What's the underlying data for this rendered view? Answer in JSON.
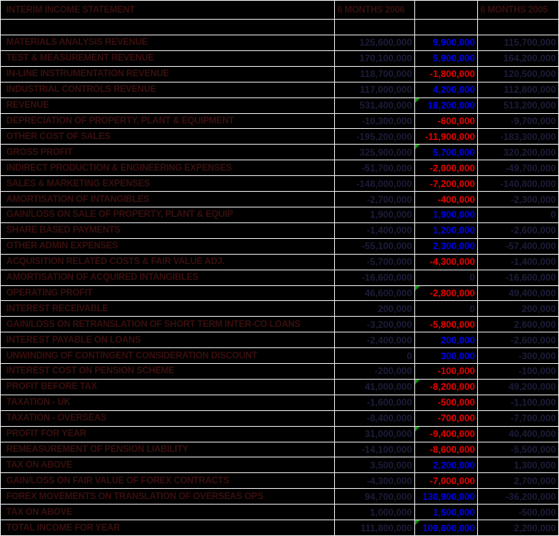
{
  "header": {
    "title": "INTERIM INCOME STATEMENT",
    "col_2006": "6 MONTHS 2006",
    "col_diff": "",
    "col_2005": "6 MONTHS 2005"
  },
  "colors": {
    "background": "#000000",
    "gridline": "#e6e6e6",
    "label_text": "#3a0e0e",
    "dark_number": "#1c1c3a",
    "positive_diff": "#0000e6",
    "negative_diff": "#e60000",
    "flag_triangle": "#009900"
  },
  "rows": [
    {
      "label": "MATERIALS ANALYSIS REVENUE",
      "y2006": "125,600,000",
      "diff": "9,900,000",
      "y2005": "115,700,000",
      "flag": false
    },
    {
      "label": "TEST & MEASUREMENT REVENUE",
      "y2006": "170,100,000",
      "diff": "5,900,000",
      "y2005": "164,200,000",
      "flag": false
    },
    {
      "label": "IN-LINE INSTRUMENTATION REVENUE",
      "y2006": "118,700,000",
      "diff": "-1,800,000",
      "y2005": "120,500,000",
      "flag": false
    },
    {
      "label": "INDUSTRIAL CONTROLS REVENUE",
      "y2006": "117,000,000",
      "diff": "4,200,000",
      "y2005": "112,800,000",
      "flag": false
    },
    {
      "label": "REVENUE",
      "y2006": "531,400,000",
      "diff": "18,200,000",
      "y2005": "513,200,000",
      "flag": true
    },
    {
      "label": "DEPRECIATION OF PROPERTY, PLANT & EQUIPMENT",
      "y2006": "-10,300,000",
      "diff": "-600,000",
      "y2005": "-9,700,000",
      "flag": false
    },
    {
      "label": "OTHER COST OF SALES",
      "y2006": "-195,200,000",
      "diff": "-11,900,000",
      "y2005": "-183,300,000",
      "flag": false
    },
    {
      "label": "GROSS PROFIT",
      "y2006": "325,900,000",
      "diff": "5,700,000",
      "y2005": "320,200,000",
      "flag": true
    },
    {
      "label": "INDIRECT PRODUCTION & ENGINEERING EXPENSES",
      "y2006": "-51,700,000",
      "diff": "-2,000,000",
      "y2005": "-49,700,000",
      "flag": false
    },
    {
      "label": "SALES & MARKETING EXPENSES",
      "y2006": "-148,000,000",
      "diff": "-7,200,000",
      "y2005": "-140,800,000",
      "flag": false
    },
    {
      "label": "AMORTISATION OF INTANGIBLES",
      "y2006": "-2,700,000",
      "diff": "-400,000",
      "y2005": "-2,300,000",
      "flag": false
    },
    {
      "label": "GAIN/LOSS ON SALE OF PROPERTY, PLANT & EQUIP",
      "y2006": "1,900,000",
      "diff": "1,900,000",
      "y2005": "0",
      "flag": false
    },
    {
      "label": "SHARE BASED PAYMENTS",
      "y2006": "-1,400,000",
      "diff": "1,200,000",
      "y2005": "-2,600,000",
      "flag": false
    },
    {
      "label": "OTHER ADMIN EXPENSES",
      "y2006": "-55,100,000",
      "diff": "2,300,000",
      "y2005": "-57,400,000",
      "flag": false
    },
    {
      "label": "ACQUISITION RELATED COSTS & FAIR VALUE ADJ.",
      "y2006": "-5,700,000",
      "diff": "-4,300,000",
      "y2005": "-1,400,000",
      "flag": false
    },
    {
      "label": "AMORTISATION OF ACQUIRED INTANGIBLES",
      "y2006": "-16,600,000",
      "diff": "0",
      "y2005": "-16,600,000",
      "flag": false
    },
    {
      "label": "OPERATING PROFIT",
      "y2006": "46,600,000",
      "diff": "-2,800,000",
      "y2005": "49,400,000",
      "flag": true
    },
    {
      "label": "INTEREST RECEIVABLE",
      "y2006": "200,000",
      "diff": "0",
      "y2005": "200,000",
      "flag": false
    },
    {
      "label": "GAIN/LOSS ON RETRANSLATION OF SHORT TERM INTER-CO LOANS",
      "y2006": "-3,200,000",
      "diff": "-5,800,000",
      "y2005": "2,600,000",
      "flag": false
    },
    {
      "label": "INTEREST PAYABLE ON LOANS",
      "y2006": "-2,400,000",
      "diff": "200,000",
      "y2005": "-2,600,000",
      "flag": false
    },
    {
      "label": "UNWINDING OF CONTINGENT CONSIDERATION DISCOUNT",
      "y2006": "0",
      "diff": "300,000",
      "y2005": "-300,000",
      "flag": false
    },
    {
      "label": "INTEREST COST ON PENSION SCHEME",
      "y2006": "-200,000",
      "diff": "-100,000",
      "y2005": "-100,000",
      "flag": false
    },
    {
      "label": "PROFIT BEFORE TAX",
      "y2006": "41,000,000",
      "diff": "-8,200,000",
      "y2005": "49,200,000",
      "flag": true
    },
    {
      "label": "TAXATION - UK",
      "y2006": "-1,600,000",
      "diff": "-500,000",
      "y2005": "-1,100,000",
      "flag": false
    },
    {
      "label": "TAXATION - OVERSEAS",
      "y2006": "-8,400,000",
      "diff": "-700,000",
      "y2005": "-7,700,000",
      "flag": false
    },
    {
      "label": "PROFIT FOR YEAR",
      "y2006": "31,000,000",
      "diff": "-9,400,000",
      "y2005": "40,400,000",
      "flag": true
    },
    {
      "label": "REMEASUREMENT OF PENSION LIABILITY",
      "y2006": "-14,100,000",
      "diff": "-8,600,000",
      "y2005": "-5,500,000",
      "flag": false
    },
    {
      "label": "TAX ON ABOVE",
      "y2006": "3,500,000",
      "diff": "2,200,000",
      "y2005": "1,300,000",
      "flag": false
    },
    {
      "label": "GAIN/LOSS ON FAIR VALUE OF FOREX CONTRACTS",
      "y2006": "-4,300,000",
      "diff": "-7,000,000",
      "y2005": "2,700,000",
      "flag": false
    },
    {
      "label": "FOREX MOVEMENTS ON TRANSLATION OF OVERSEAS OPS",
      "y2006": "94,700,000",
      "diff": "130,900,000",
      "y2005": "-36,200,000",
      "flag": false
    },
    {
      "label": "TAX ON ABOVE",
      "y2006": "1,000,000",
      "diff": "1,500,000",
      "y2005": "-500,000",
      "flag": false
    },
    {
      "label": "TOTAL INCOME FOR YEAR",
      "y2006": "111,800,000",
      "diff": "109,600,000",
      "y2005": "2,200,000",
      "flag": true
    }
  ]
}
